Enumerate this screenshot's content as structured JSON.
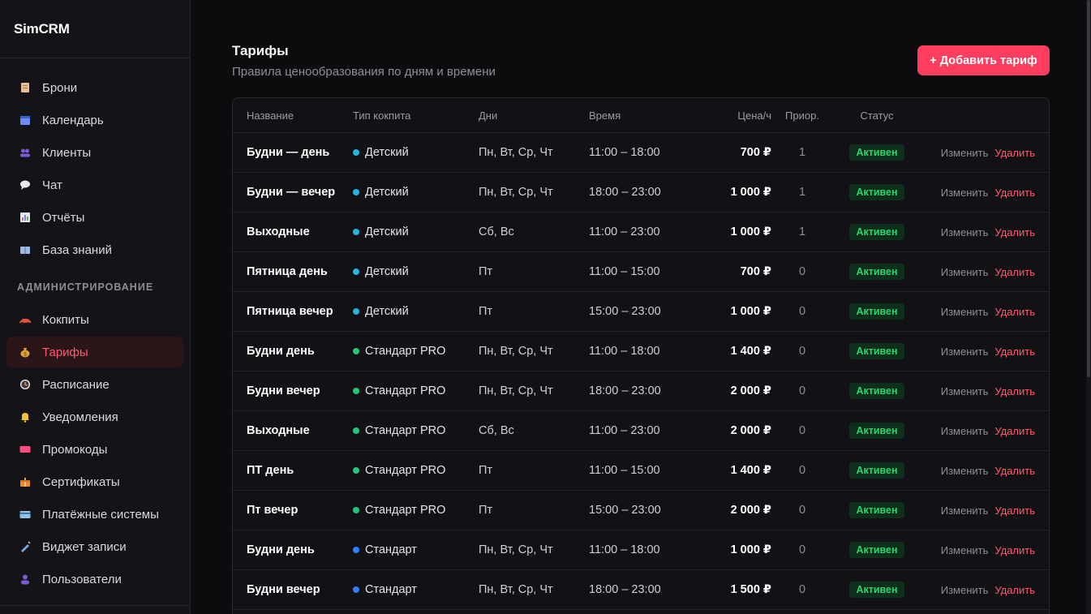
{
  "app": {
    "brand": "SimCRM"
  },
  "sidebar": {
    "items": [
      {
        "label": "Брони",
        "icon": "clipboard-icon",
        "color": "#e9c29a"
      },
      {
        "label": "Календарь",
        "icon": "calendar-icon",
        "color": "#6d8ef0"
      },
      {
        "label": "Клиенты",
        "icon": "people-icon",
        "color": "#7b5cd6"
      },
      {
        "label": "Чат",
        "icon": "chat-bubble-icon",
        "color": "#e8e8ee"
      },
      {
        "label": "Отчёты",
        "icon": "bar-chart-icon",
        "color": "#d96a7a"
      },
      {
        "label": "База знаний",
        "icon": "book-icon",
        "color": "#9fb8e8"
      }
    ],
    "admin_label": "АДМИНИСТРИРОВАНИЕ",
    "admin_items": [
      {
        "label": "Кокпиты",
        "icon": "racing-car-icon",
        "color": "#e0533d"
      },
      {
        "label": "Тарифы",
        "icon": "money-bag-icon",
        "color": "#e0a23d",
        "active": true
      },
      {
        "label": "Расписание",
        "icon": "clock-icon",
        "color": "#e9e9ef"
      },
      {
        "label": "Уведомления",
        "icon": "bell-icon",
        "color": "#f2c230"
      },
      {
        "label": "Промокоды",
        "icon": "ticket-icon",
        "color": "#ff4f7e"
      },
      {
        "label": "Сертификаты",
        "icon": "gift-icon",
        "color": "#e8872f"
      },
      {
        "label": "Платёжные системы",
        "icon": "credit-card-icon",
        "color": "#8fc3e8"
      },
      {
        "label": "Виджет записи",
        "icon": "syringe-icon",
        "color": "#7fa6d9"
      },
      {
        "label": "Пользователи",
        "icon": "user-icon",
        "color": "#7b5cd6"
      }
    ]
  },
  "header": {
    "title": "Тарифы",
    "subtitle": "Правила ценообразования по дням и времени",
    "add_label": "+ Добавить тариф"
  },
  "table": {
    "columns": [
      "Название",
      "Тип кокпита",
      "Дни",
      "Время",
      "Цена/ч",
      "Приор.",
      "Статус"
    ],
    "edit_label": "Изменить",
    "delete_label": "Удалить",
    "type_colors": {
      "Детский": "#22b6e0",
      "Стандарт PRO": "#22c77a",
      "Стандарт": "#2f7fff"
    },
    "rows": [
      {
        "name": "Будни — день",
        "type": "Детский",
        "days": "Пн, Вт, Ср, Чт",
        "time": "11:00 – 18:00",
        "price": "700 ₽",
        "prio": "1",
        "status": "Активен"
      },
      {
        "name": "Будни — вечер",
        "type": "Детский",
        "days": "Пн, Вт, Ср, Чт",
        "time": "18:00 – 23:00",
        "price": "1 000 ₽",
        "prio": "1",
        "status": "Активен"
      },
      {
        "name": "Выходные",
        "type": "Детский",
        "days": "Сб, Вс",
        "time": "11:00 – 23:00",
        "price": "1 000 ₽",
        "prio": "1",
        "status": "Активен"
      },
      {
        "name": "Пятница день",
        "type": "Детский",
        "days": "Пт",
        "time": "11:00 – 15:00",
        "price": "700 ₽",
        "prio": "0",
        "status": "Активен"
      },
      {
        "name": "Пятница вечер",
        "type": "Детский",
        "days": "Пт",
        "time": "15:00 – 23:00",
        "price": "1 000 ₽",
        "prio": "0",
        "status": "Активен"
      },
      {
        "name": "Будни день",
        "type": "Стандарт PRO",
        "days": "Пн, Вт, Ср, Чт",
        "time": "11:00 – 18:00",
        "price": "1 400 ₽",
        "prio": "0",
        "status": "Активен"
      },
      {
        "name": "Будни вечер",
        "type": "Стандарт PRO",
        "days": "Пн, Вт, Ср, Чт",
        "time": "18:00 – 23:00",
        "price": "2 000 ₽",
        "prio": "0",
        "status": "Активен"
      },
      {
        "name": "Выходные",
        "type": "Стандарт PRO",
        "days": "Сб, Вс",
        "time": "11:00 – 23:00",
        "price": "2 000 ₽",
        "prio": "0",
        "status": "Активен"
      },
      {
        "name": "ПТ день",
        "type": "Стандарт PRO",
        "days": "Пт",
        "time": "11:00 – 15:00",
        "price": "1 400 ₽",
        "prio": "0",
        "status": "Активен"
      },
      {
        "name": "Пт вечер",
        "type": "Стандарт PRO",
        "days": "Пт",
        "time": "15:00 – 23:00",
        "price": "2 000 ₽",
        "prio": "0",
        "status": "Активен"
      },
      {
        "name": "Будни день",
        "type": "Стандарт",
        "days": "Пн, Вт, Ср, Чт",
        "time": "11:00 – 18:00",
        "price": "1 000 ₽",
        "prio": "0",
        "status": "Активен"
      },
      {
        "name": "Будни вечер",
        "type": "Стандарт",
        "days": "Пн, Вт, Ср, Чт",
        "time": "18:00 – 23:00",
        "price": "1 500 ₽",
        "prio": "0",
        "status": "Активен"
      }
    ]
  }
}
